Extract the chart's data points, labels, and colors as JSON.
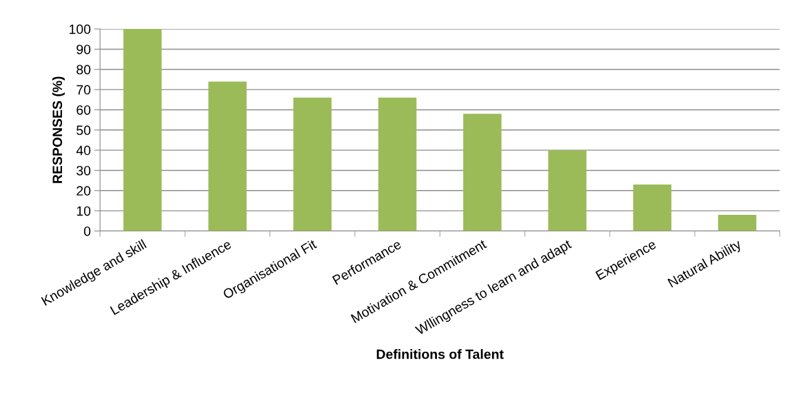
{
  "chart_data": {
    "type": "bar",
    "xlabel": "Definitions of Talent",
    "ylabel": "RESPONSES (%)",
    "categories": [
      "Knowledge and skill",
      "Leadership & Influence",
      "Organisational Fit",
      "Performance",
      "Motivation & Commitment",
      "Wllingness to learn and adapt",
      "Experience",
      "Natural Ability"
    ],
    "values": [
      100,
      74,
      66,
      66,
      58,
      40,
      23,
      8
    ],
    "color": "#9bbb59",
    "ylim": [
      0,
      100
    ],
    "yticks": [
      0,
      10,
      20,
      30,
      40,
      50,
      60,
      70,
      80,
      90,
      100
    ],
    "grid": "y",
    "legend": false
  }
}
